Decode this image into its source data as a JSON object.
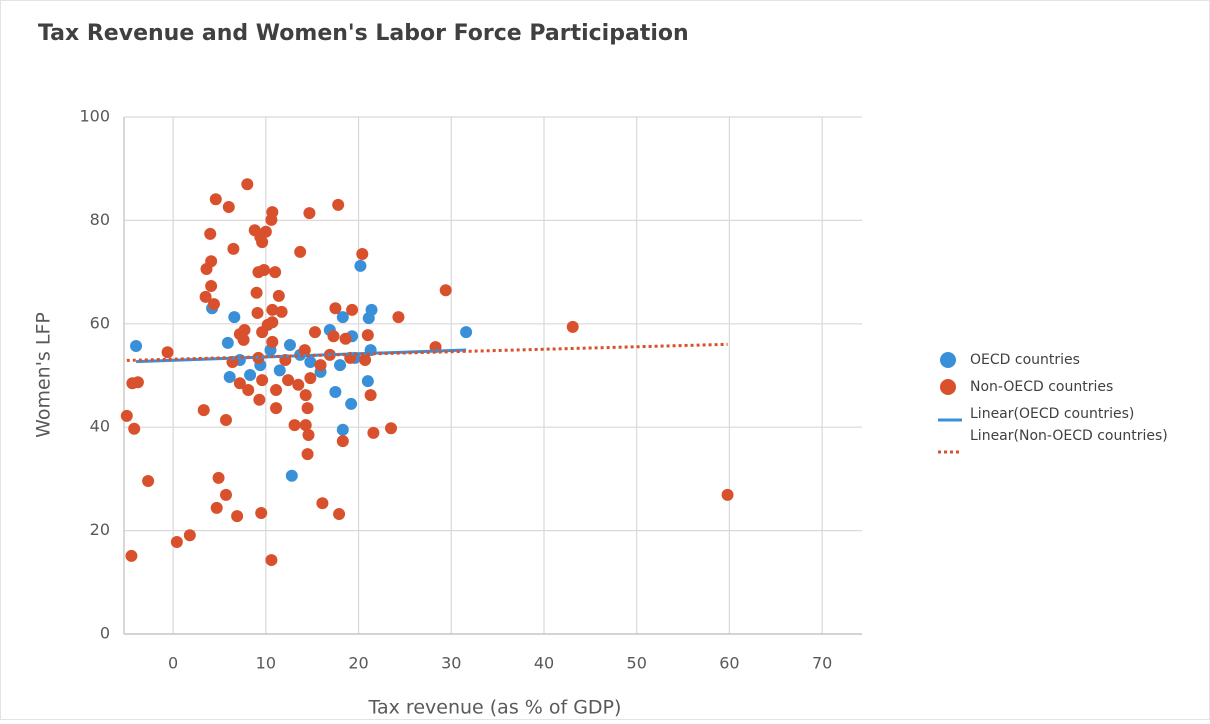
{
  "chart_data": {
    "type": "scatter",
    "title": "Tax Revenue and Women's Labor Force Participation",
    "x_label": "Tax revenue (as % of GDP)",
    "y_label": "Women's LFP",
    "xlim": [
      -5.3,
      74.3
    ],
    "ylim": [
      0,
      100
    ],
    "xticks": [
      0,
      10,
      20,
      30,
      40,
      50,
      60,
      70
    ],
    "yticks": [
      0,
      20,
      40,
      60,
      80,
      100
    ],
    "grid": true,
    "legend": "right",
    "trendline": "linear",
    "series": [
      {
        "name": "OECD countries",
        "color": "#3a8fd9",
        "trendline_name": "Linear(OECD countries)",
        "trendline_style": "solid",
        "x": [
          -4,
          4.2,
          6.6,
          5.9,
          6.1,
          12.8,
          20.2,
          21.4,
          21.1,
          18.3,
          16.9,
          19.3,
          21.3,
          17.5,
          19.2,
          18.3,
          31.6,
          21,
          7.2,
          9.4,
          11.5,
          13.7,
          15.9,
          14.8,
          10.5,
          8.3,
          12.6,
          18,
          19.6
        ],
        "values": [
          55.7,
          63,
          61.3,
          56.3,
          49.7,
          30.6,
          71.2,
          62.7,
          61.1,
          61.3,
          58.8,
          57.6,
          54.9,
          46.8,
          44.5,
          39.5,
          58.4,
          48.9,
          53,
          52,
          51,
          54,
          50.7,
          52.6,
          54.9,
          50.1,
          55.9,
          52,
          53.4
        ]
      },
      {
        "name": "Non-OECD countries",
        "color": "#d9512c",
        "trendline_name": "Linear(Non-OECD countries)",
        "trendline_style": "dotted",
        "x": [
          -4.5,
          -4.4,
          -3.8,
          -5,
          -4.2,
          -2.7,
          -0.6,
          0.4,
          1.8,
          3.3,
          4,
          3.6,
          4.1,
          4.1,
          3.5,
          4.4,
          4.6,
          6,
          6.5,
          8,
          4.9,
          4.7,
          5.7,
          6.9,
          5.7,
          9.5,
          10.6,
          7.2,
          7.7,
          7.6,
          8.8,
          9.4,
          9.6,
          10,
          10.7,
          10.6,
          9.2,
          9.8,
          11,
          9,
          9.1,
          9.6,
          11.4,
          10.7,
          11.7,
          10.7,
          10.7,
          10.2,
          13.7,
          14.7,
          17.8,
          20.4,
          17.5,
          19.3,
          15.3,
          17.3,
          18.6,
          21,
          24.3,
          29.4,
          28.3,
          43.1,
          59.8,
          21.3,
          23.5,
          21.6,
          18.3,
          14.5,
          16.1,
          17.9,
          13.1,
          14.3,
          14.6,
          14.5,
          14.3,
          11.1,
          11.1,
          9.3,
          8.1,
          7.2,
          9.6,
          12.4,
          13.5,
          14.8,
          15.9,
          12.1,
          9.2,
          6.4,
          20.7,
          19.1,
          14.2,
          16.9
        ],
        "values": [
          15.1,
          48.5,
          48.7,
          42.2,
          39.7,
          29.6,
          54.5,
          17.8,
          19.1,
          43.3,
          77.4,
          70.6,
          72.1,
          67.3,
          65.2,
          63.8,
          84.1,
          82.6,
          74.5,
          87,
          30.2,
          24.4,
          26.9,
          22.8,
          41.4,
          23.4,
          14.3,
          58,
          58.8,
          56.9,
          78.1,
          76.8,
          75.8,
          77.8,
          81.6,
          80.1,
          70,
          70.4,
          70,
          66,
          62.1,
          58.4,
          65.4,
          62.7,
          62.3,
          60.3,
          56.5,
          59.8,
          73.9,
          81.4,
          83,
          73.5,
          63,
          62.7,
          58.4,
          57.6,
          57.1,
          57.8,
          61.3,
          66.5,
          55.5,
          59.4,
          26.9,
          46.2,
          39.8,
          38.9,
          37.3,
          34.8,
          25.3,
          23.2,
          40.4,
          40.4,
          38.5,
          43.7,
          46.2,
          43.7,
          47.2,
          45.3,
          47.2,
          48.5,
          49.1,
          49.1,
          48.2,
          49.5,
          52,
          53,
          53.4,
          52.6,
          53,
          53.4,
          54.9,
          54
        ]
      }
    ]
  }
}
